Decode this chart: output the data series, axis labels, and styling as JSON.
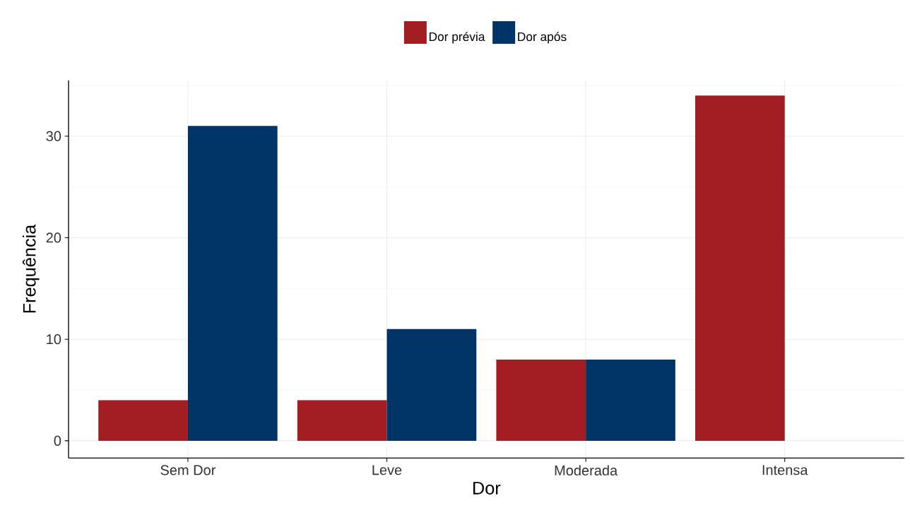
{
  "chart_data": {
    "type": "bar",
    "xlabel": "Dor",
    "ylabel": "Frequência",
    "categories": [
      "Sem Dor",
      "Leve",
      "Moderada",
      "Intensa"
    ],
    "series": [
      {
        "name": "Dor prévia",
        "color": "#a11d21",
        "values": [
          4,
          4,
          8,
          34
        ]
      },
      {
        "name": "Dor após",
        "color": "#003366",
        "values": [
          31,
          11,
          8,
          0
        ]
      }
    ],
    "ylim": [
      -1.7,
      35.5
    ],
    "yticks": [
      0,
      10,
      20,
      30
    ],
    "grid": true,
    "legend": "top"
  }
}
